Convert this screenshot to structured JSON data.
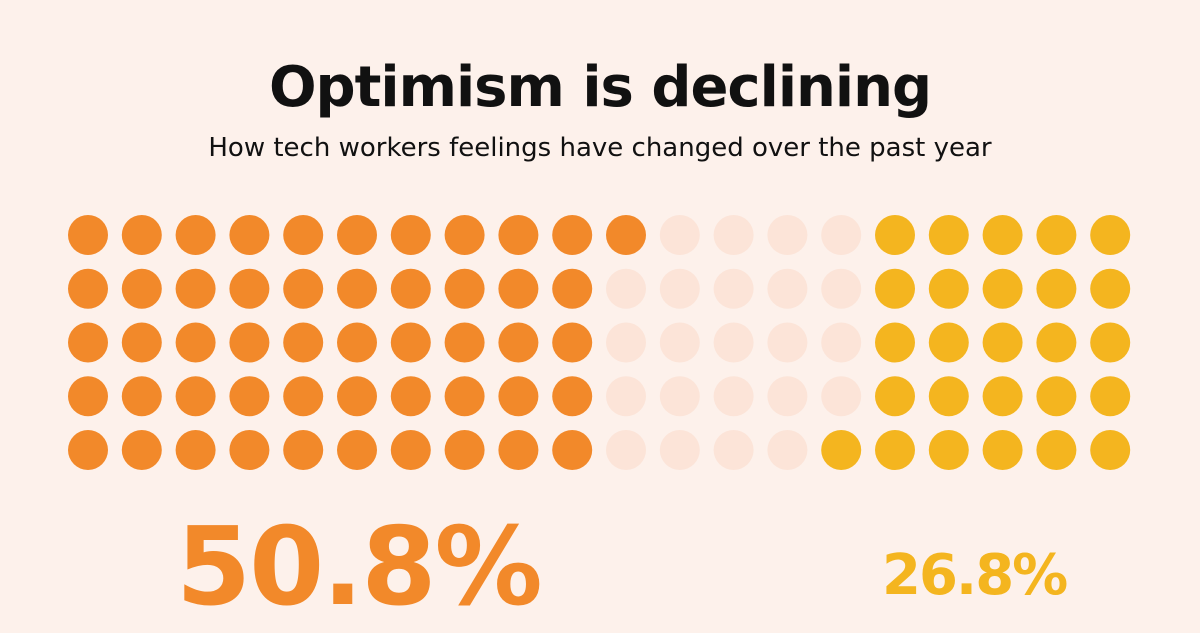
{
  "header": {
    "title": "Optimism is declining",
    "subtitle": "How tech workers feelings have changed over the past year"
  },
  "stats": {
    "primary": "50.8%",
    "secondary": "26.8%"
  },
  "colors": {
    "background": "#fdf1eb",
    "primary": "#f2892a",
    "empty": "#fce4d8",
    "secondary": "#f4b51f",
    "text": "#111111"
  },
  "chart_data": {
    "type": "waffle",
    "title": "Optimism is declining",
    "subtitle": "How tech workers feelings have changed over the past year",
    "rows": 5,
    "columns": 20,
    "series": [
      {
        "name": "primary",
        "value_label": "50.8%",
        "dots_by_row": [
          11,
          10,
          10,
          10,
          10
        ]
      },
      {
        "name": "empty",
        "dots_by_row": [
          4,
          5,
          5,
          5,
          4
        ]
      },
      {
        "name": "secondary",
        "value_label": "26.8%",
        "dots_by_row": [
          5,
          5,
          5,
          5,
          6
        ]
      }
    ]
  }
}
